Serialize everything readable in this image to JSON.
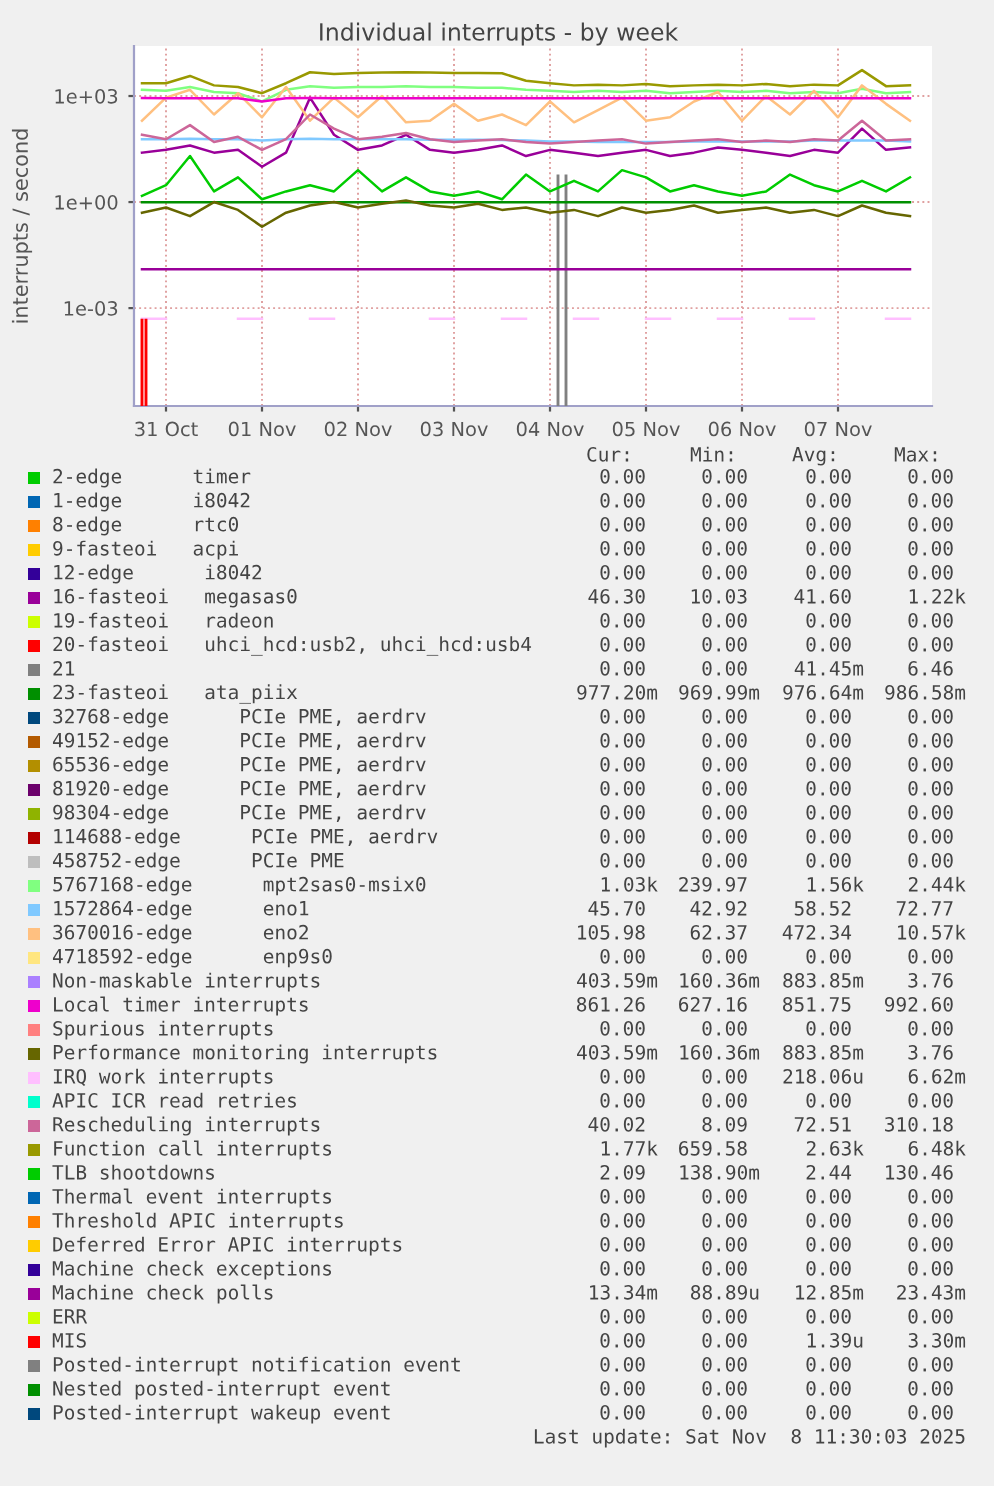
{
  "chart_data": {
    "type": "line",
    "title": "Individual interrupts - by week",
    "ylabel": "interrupts / second",
    "log": "y",
    "grid": true,
    "legend": "bottom",
    "marker": "none",
    "line_style": "solid",
    "ylim": [
      1.7e-06,
      26000
    ],
    "yticks": [
      {
        "value": 0.001,
        "label": "1e-03"
      },
      {
        "value": 1,
        "label": "1e+00"
      },
      {
        "value": 1000,
        "label": "1e+03"
      }
    ],
    "xlim": [
      "2025-10-31T04:00",
      "2025-11-08T11:30"
    ],
    "xticks": [
      {
        "value": "2025-10-31T12:00",
        "label": "31 Oct"
      },
      {
        "value": "2025-11-01T12:00",
        "label": "01 Nov"
      },
      {
        "value": "2025-11-02T12:00",
        "label": "02 Nov"
      },
      {
        "value": "2025-11-03T12:00",
        "label": "03 Nov"
      },
      {
        "value": "2025-11-04T12:00",
        "label": "04 Nov"
      },
      {
        "value": "2025-11-05T12:00",
        "label": "05 Nov"
      },
      {
        "value": "2025-11-06T12:00",
        "label": "06 Nov"
      },
      {
        "value": "2025-11-07T12:00",
        "label": "07 Nov"
      }
    ],
    "x": [
      "2025-10-31T06:00",
      "2025-10-31T12:00",
      "2025-10-31T18:00",
      "2025-11-01T00:00",
      "2025-11-01T06:00",
      "2025-11-01T12:00",
      "2025-11-01T18:00",
      "2025-11-02T00:00",
      "2025-11-02T06:00",
      "2025-11-02T12:00",
      "2025-11-02T18:00",
      "2025-11-03T00:00",
      "2025-11-03T06:00",
      "2025-11-03T12:00",
      "2025-11-03T18:00",
      "2025-11-04T00:00",
      "2025-11-04T06:00",
      "2025-11-04T12:00",
      "2025-11-04T18:00",
      "2025-11-05T00:00",
      "2025-11-05T06:00",
      "2025-11-05T12:00",
      "2025-11-05T18:00",
      "2025-11-06T00:00",
      "2025-11-06T06:00",
      "2025-11-06T12:00",
      "2025-11-06T18:00",
      "2025-11-07T00:00",
      "2025-11-07T06:00",
      "2025-11-07T12:00",
      "2025-11-07T18:00",
      "2025-11-08T00:00",
      "2025-11-08T06:00"
    ],
    "series": [
      {
        "name": "2-edge      timer",
        "color": "#00cc00",
        "values": [
          null,
          null,
          null,
          null,
          null,
          null,
          null,
          null,
          null,
          null,
          null,
          null,
          null,
          null,
          null,
          null,
          null,
          null,
          null,
          null,
          null,
          null,
          null,
          null,
          null,
          null,
          null,
          null,
          null,
          null,
          null,
          null,
          null
        ]
      },
      {
        "name": "1-edge      i8042",
        "color": "#0066b3",
        "values": [
          null,
          null,
          null,
          null,
          null,
          null,
          null,
          null,
          null,
          null,
          null,
          null,
          null,
          null,
          null,
          null,
          null,
          null,
          null,
          null,
          null,
          null,
          null,
          null,
          null,
          null,
          null,
          null,
          null,
          null,
          null,
          null,
          null
        ]
      },
      {
        "name": "8-edge      rtc0",
        "color": "#ff8000",
        "values": [
          null,
          null,
          null,
          null,
          null,
          null,
          null,
          null,
          null,
          null,
          null,
          null,
          null,
          null,
          null,
          null,
          null,
          null,
          null,
          null,
          null,
          null,
          null,
          null,
          null,
          null,
          null,
          null,
          null,
          null,
          null,
          null,
          null
        ]
      },
      {
        "name": "9-fasteoi   acpi",
        "color": "#ffcc00",
        "values": [
          null,
          null,
          null,
          null,
          null,
          null,
          null,
          null,
          null,
          null,
          null,
          null,
          null,
          null,
          null,
          null,
          null,
          null,
          null,
          null,
          null,
          null,
          null,
          null,
          null,
          null,
          null,
          null,
          null,
          null,
          null,
          null,
          null
        ]
      },
      {
        "name": "12-edge      i8042",
        "color": "#330099",
        "values": [
          null,
          null,
          null,
          null,
          null,
          null,
          null,
          null,
          null,
          null,
          null,
          null,
          null,
          null,
          null,
          null,
          null,
          null,
          null,
          null,
          null,
          null,
          null,
          null,
          null,
          null,
          null,
          null,
          null,
          null,
          null,
          null,
          null
        ]
      },
      {
        "name": "16-fasteoi   megasas0",
        "color": "#990099",
        "values": [
          25,
          30,
          40,
          25,
          30,
          10,
          25,
          900,
          80,
          30,
          40,
          80,
          30,
          25,
          30,
          40,
          20,
          30,
          25,
          20,
          25,
          30,
          20,
          25,
          35,
          30,
          25,
          20,
          30,
          25,
          120,
          30,
          35
        ]
      },
      {
        "name": "19-fasteoi   radeon",
        "color": "#ccff00",
        "values": [
          null,
          null,
          null,
          null,
          null,
          null,
          null,
          null,
          null,
          null,
          null,
          null,
          null,
          null,
          null,
          null,
          null,
          null,
          null,
          null,
          null,
          null,
          null,
          null,
          null,
          null,
          null,
          null,
          null,
          null,
          null,
          null,
          null
        ]
      },
      {
        "name": "20-fasteoi   uhci_hcd:usb2, uhci_hcd:usb4",
        "color": "#ff0000",
        "values": [
          null,
          null,
          null,
          null,
          null,
          null,
          null,
          null,
          null,
          null,
          null,
          null,
          null,
          null,
          null,
          null,
          null,
          null,
          null,
          null,
          null,
          null,
          null,
          null,
          null,
          null,
          null,
          null,
          null,
          null,
          null,
          null,
          null
        ]
      },
      {
        "name": "21",
        "color": "#808080",
        "type": "bar",
        "x": [
          "2025-11-04T14:00",
          "2025-11-04T16:00"
        ],
        "values": [
          6,
          6
        ]
      },
      {
        "name": "23-fasteoi   ata_piix",
        "color": "#008f00",
        "values": [
          0.98,
          0.98,
          0.98,
          0.98,
          0.98,
          0.98,
          0.98,
          0.98,
          0.98,
          0.98,
          0.98,
          0.98,
          0.98,
          0.98,
          0.98,
          0.98,
          0.98,
          0.98,
          0.98,
          0.98,
          0.98,
          0.98,
          0.98,
          0.98,
          0.98,
          0.98,
          0.98,
          0.98,
          0.98,
          0.98,
          0.98,
          0.98,
          0.98
        ]
      },
      {
        "name": "32768-edge      PCIe PME, aerdrv",
        "color": "#00487d",
        "values": [
          null,
          null,
          null,
          null,
          null,
          null,
          null,
          null,
          null,
          null,
          null,
          null,
          null,
          null,
          null,
          null,
          null,
          null,
          null,
          null,
          null,
          null,
          null,
          null,
          null,
          null,
          null,
          null,
          null,
          null,
          null,
          null,
          null
        ]
      },
      {
        "name": "49152-edge      PCIe PME, aerdrv",
        "color": "#b35a00",
        "values": [
          null,
          null,
          null,
          null,
          null,
          null,
          null,
          null,
          null,
          null,
          null,
          null,
          null,
          null,
          null,
          null,
          null,
          null,
          null,
          null,
          null,
          null,
          null,
          null,
          null,
          null,
          null,
          null,
          null,
          null,
          null,
          null,
          null
        ]
      },
      {
        "name": "65536-edge      PCIe PME, aerdrv",
        "color": "#b38f00",
        "values": [
          null,
          null,
          null,
          null,
          null,
          null,
          null,
          null,
          null,
          null,
          null,
          null,
          null,
          null,
          null,
          null,
          null,
          null,
          null,
          null,
          null,
          null,
          null,
          null,
          null,
          null,
          null,
          null,
          null,
          null,
          null,
          null,
          null
        ]
      },
      {
        "name": "81920-edge      PCIe PME, aerdrv",
        "color": "#6b006b",
        "values": [
          null,
          null,
          null,
          null,
          null,
          null,
          null,
          null,
          null,
          null,
          null,
          null,
          null,
          null,
          null,
          null,
          null,
          null,
          null,
          null,
          null,
          null,
          null,
          null,
          null,
          null,
          null,
          null,
          null,
          null,
          null,
          null,
          null
        ]
      },
      {
        "name": "98304-edge      PCIe PME, aerdrv",
        "color": "#8fb300",
        "values": [
          null,
          null,
          null,
          null,
          null,
          null,
          null,
          null,
          null,
          null,
          null,
          null,
          null,
          null,
          null,
          null,
          null,
          null,
          null,
          null,
          null,
          null,
          null,
          null,
          null,
          null,
          null,
          null,
          null,
          null,
          null,
          null,
          null
        ]
      },
      {
        "name": "114688-edge      PCIe PME, aerdrv",
        "color": "#b30000",
        "values": [
          null,
          null,
          null,
          null,
          null,
          null,
          null,
          null,
          null,
          null,
          null,
          null,
          null,
          null,
          null,
          null,
          null,
          null,
          null,
          null,
          null,
          null,
          null,
          null,
          null,
          null,
          null,
          null,
          null,
          null,
          null,
          null,
          null
        ]
      },
      {
        "name": "458752-edge      PCIe PME",
        "color": "#bebebe",
        "values": [
          null,
          null,
          null,
          null,
          null,
          null,
          null,
          null,
          null,
          null,
          null,
          null,
          null,
          null,
          null,
          null,
          null,
          null,
          null,
          null,
          null,
          null,
          null,
          null,
          null,
          null,
          null,
          null,
          null,
          null,
          null,
          null,
          null
        ]
      },
      {
        "name": "5767168-edge      mpt2sas0-msix0",
        "color": "#80ff80",
        "values": [
          1500,
          1400,
          1800,
          1300,
          1200,
          700,
          1500,
          1900,
          1700,
          1800,
          1800,
          1900,
          1800,
          1800,
          1700,
          1700,
          1500,
          1400,
          1300,
          1400,
          1300,
          1400,
          1200,
          1300,
          1400,
          1300,
          1400,
          1200,
          1300,
          1200,
          1600,
          1200,
          1300
        ]
      },
      {
        "name": "1572864-edge      eno1",
        "color": "#80c9ff",
        "values": [
          60,
          60,
          62,
          60,
          60,
          55,
          60,
          62,
          60,
          60,
          60,
          60,
          58,
          58,
          58,
          57,
          55,
          52,
          52,
          50,
          50,
          50,
          50,
          52,
          52,
          52,
          52,
          52,
          55,
          55,
          55,
          55,
          52
        ]
      },
      {
        "name": "3670016-edge      eno2",
        "color": "#ffc080",
        "values": [
          200,
          900,
          1500,
          300,
          1200,
          250,
          1800,
          200,
          900,
          250,
          1000,
          180,
          200,
          600,
          200,
          300,
          150,
          700,
          180,
          400,
          900,
          200,
          250,
          700,
          1300,
          200,
          1000,
          300,
          1400,
          250,
          2000,
          600,
          200
        ]
      },
      {
        "name": "4718592-edge      enp9s0",
        "color": "#ffe680",
        "values": [
          null,
          null,
          null,
          null,
          null,
          null,
          null,
          null,
          null,
          null,
          null,
          null,
          null,
          null,
          null,
          null,
          null,
          null,
          null,
          null,
          null,
          null,
          null,
          null,
          null,
          null,
          null,
          null,
          null,
          null,
          null,
          null,
          null
        ]
      },
      {
        "name": "Non-maskable interrupts",
        "color": "#aa80ff",
        "values": [
          null,
          null,
          null,
          null,
          null,
          null,
          null,
          null,
          null,
          null,
          null,
          null,
          null,
          null,
          null,
          null,
          null,
          null,
          null,
          null,
          null,
          null,
          null,
          null,
          null,
          null,
          null,
          null,
          null,
          null,
          null,
          null,
          null
        ]
      },
      {
        "name": "Local timer interrupts",
        "color": "#ee00cc",
        "values": [
          880,
          870,
          860,
          870,
          870,
          700,
          870,
          880,
          870,
          860,
          870,
          870,
          860,
          870,
          860,
          870,
          870,
          860,
          860,
          870,
          860,
          870,
          860,
          860,
          870,
          860,
          870,
          860,
          860,
          870,
          860,
          870,
          860
        ]
      },
      {
        "name": "Spurious interrupts",
        "color": "#ff8080",
        "values": [
          null,
          null,
          null,
          null,
          null,
          null,
          null,
          null,
          null,
          null,
          null,
          null,
          null,
          null,
          null,
          null,
          null,
          null,
          null,
          null,
          null,
          null,
          null,
          null,
          null,
          null,
          null,
          null,
          null,
          null,
          null,
          null,
          null
        ]
      },
      {
        "name": "Performance monitoring interrupts",
        "color": "#666600",
        "values": [
          0.5,
          0.7,
          0.4,
          1,
          0.6,
          0.2,
          0.5,
          0.8,
          1,
          0.7,
          0.9,
          1.1,
          0.8,
          0.7,
          0.9,
          0.6,
          0.7,
          0.5,
          0.6,
          0.4,
          0.7,
          0.5,
          0.6,
          0.8,
          0.5,
          0.6,
          0.7,
          0.5,
          0.6,
          0.4,
          0.8,
          0.5,
          0.4
        ]
      },
      {
        "name": "IRQ work interrupts",
        "color": "#ffbfff",
        "values": [
          0.0005,
          0.0005,
          null,
          null,
          0.0005,
          0.0005,
          null,
          0.0005,
          0.0005,
          null,
          null,
          null,
          0.0005,
          0.0005,
          null,
          0.0005,
          0.0005,
          null,
          0.0005,
          0.0005,
          null,
          0.0005,
          0.0005,
          null,
          0.0005,
          0.0005,
          null,
          0.0005,
          0.0005,
          null,
          null,
          0.0005,
          0.0005
        ]
      },
      {
        "name": "APIC ICR read retries",
        "color": "#00ffcc",
        "values": [
          null,
          null,
          null,
          null,
          null,
          null,
          null,
          null,
          null,
          null,
          null,
          null,
          null,
          null,
          null,
          null,
          null,
          null,
          null,
          null,
          null,
          null,
          null,
          null,
          null,
          null,
          null,
          null,
          null,
          null,
          null,
          null,
          null
        ]
      },
      {
        "name": "Rescheduling interrupts",
        "color": "#cc6699",
        "values": [
          80,
          60,
          150,
          50,
          70,
          30,
          60,
          300,
          120,
          60,
          70,
          90,
          60,
          50,
          55,
          60,
          50,
          45,
          50,
          55,
          60,
          45,
          50,
          55,
          60,
          50,
          55,
          50,
          60,
          55,
          200,
          55,
          60
        ]
      },
      {
        "name": "Function call interrupts",
        "color": "#999900",
        "values": [
          2300,
          2300,
          3700,
          2000,
          1800,
          1200,
          2300,
          4700,
          4200,
          4500,
          4600,
          4700,
          4600,
          4500,
          4500,
          4400,
          2700,
          2300,
          2000,
          2100,
          2000,
          2200,
          1900,
          2000,
          2100,
          2000,
          2200,
          1900,
          2100,
          2000,
          5400,
          1900,
          2000
        ]
      },
      {
        "name": "TLB shootdowns",
        "color": "#00cc00",
        "values": [
          1.5,
          3,
          20,
          2,
          5,
          1.2,
          2,
          3,
          2,
          8,
          2,
          5,
          2,
          1.5,
          2,
          1.2,
          6,
          2,
          4,
          2,
          8,
          5,
          2,
          3,
          2,
          1.5,
          2,
          6,
          3,
          2,
          4,
          2,
          5
        ]
      },
      {
        "name": "Thermal event interrupts",
        "color": "#0066b3",
        "values": [
          null,
          null,
          null,
          null,
          null,
          null,
          null,
          null,
          null,
          null,
          null,
          null,
          null,
          null,
          null,
          null,
          null,
          null,
          null,
          null,
          null,
          null,
          null,
          null,
          null,
          null,
          null,
          null,
          null,
          null,
          null,
          null,
          null
        ]
      },
      {
        "name": "Threshold APIC interrupts",
        "color": "#ff8000",
        "values": [
          null,
          null,
          null,
          null,
          null,
          null,
          null,
          null,
          null,
          null,
          null,
          null,
          null,
          null,
          null,
          null,
          null,
          null,
          null,
          null,
          null,
          null,
          null,
          null,
          null,
          null,
          null,
          null,
          null,
          null,
          null,
          null,
          null
        ]
      },
      {
        "name": "Deferred Error APIC interrupts",
        "color": "#ffcc00",
        "values": [
          null,
          null,
          null,
          null,
          null,
          null,
          null,
          null,
          null,
          null,
          null,
          null,
          null,
          null,
          null,
          null,
          null,
          null,
          null,
          null,
          null,
          null,
          null,
          null,
          null,
          null,
          null,
          null,
          null,
          null,
          null,
          null,
          null
        ]
      },
      {
        "name": "Machine check exceptions",
        "color": "#330099",
        "values": [
          null,
          null,
          null,
          null,
          null,
          null,
          null,
          null,
          null,
          null,
          null,
          null,
          null,
          null,
          null,
          null,
          null,
          null,
          null,
          null,
          null,
          null,
          null,
          null,
          null,
          null,
          null,
          null,
          null,
          null,
          null,
          null,
          null
        ]
      },
      {
        "name": "Machine check polls",
        "color": "#990099",
        "values": [
          0.0125,
          0.0125,
          0.0125,
          0.0125,
          0.0125,
          0.0125,
          0.0125,
          0.0125,
          0.0125,
          0.0125,
          0.0125,
          0.0125,
          0.0125,
          0.0125,
          0.0125,
          0.0125,
          0.0125,
          0.0125,
          0.0125,
          0.0125,
          0.0125,
          0.0125,
          0.0125,
          0.0125,
          0.0125,
          0.0125,
          0.0125,
          0.0125,
          0.0125,
          0.0125,
          0.0125,
          0.0125,
          0.0125
        ]
      },
      {
        "name": "ERR",
        "color": "#ccff00",
        "values": [
          null,
          null,
          null,
          null,
          null,
          null,
          null,
          null,
          null,
          null,
          null,
          null,
          null,
          null,
          null,
          null,
          null,
          null,
          null,
          null,
          null,
          null,
          null,
          null,
          null,
          null,
          null,
          null,
          null,
          null,
          null,
          null,
          null
        ]
      },
      {
        "name": "MIS",
        "color": "#ff0000",
        "type": "bar",
        "x": [
          "2025-10-31T06:00",
          "2025-10-31T07:00"
        ],
        "values": [
          0.0005,
          0.0005
        ]
      },
      {
        "name": "Posted-interrupt notification event",
        "color": "#808080",
        "values": [
          null,
          null,
          null,
          null,
          null,
          null,
          null,
          null,
          null,
          null,
          null,
          null,
          null,
          null,
          null,
          null,
          null,
          null,
          null,
          null,
          null,
          null,
          null,
          null,
          null,
          null,
          null,
          null,
          null,
          null,
          null,
          null,
          null
        ]
      },
      {
        "name": "Nested posted-interrupt event",
        "color": "#008f00",
        "values": [
          null,
          null,
          null,
          null,
          null,
          null,
          null,
          null,
          null,
          null,
          null,
          null,
          null,
          null,
          null,
          null,
          null,
          null,
          null,
          null,
          null,
          null,
          null,
          null,
          null,
          null,
          null,
          null,
          null,
          null,
          null,
          null,
          null
        ]
      },
      {
        "name": "Posted-interrupt wakeup event",
        "color": "#00487d",
        "values": [
          null,
          null,
          null,
          null,
          null,
          null,
          null,
          null,
          null,
          null,
          null,
          null,
          null,
          null,
          null,
          null,
          null,
          null,
          null,
          null,
          null,
          null,
          null,
          null,
          null,
          null,
          null,
          null,
          null,
          null,
          null,
          null,
          null
        ]
      }
    ],
    "annotations": [
      "Cur:",
      "Min:",
      "Avg:",
      "Max:",
      "0.00",
      "0.00",
      "0.00",
      "0.00",
      "0.00",
      "0.00",
      "0.00",
      "0.00",
      "0.00",
      "0.00",
      "0.00",
      "0.00",
      "0.00",
      "0.00",
      "0.00",
      "0.00",
      "0.00",
      "0.00",
      "0.00",
      "0.00",
      "46.30",
      "10.03",
      "41.60",
      "1.22k",
      "0.00",
      "0.00",
      "0.00",
      "0.00",
      "0.00",
      "0.00",
      "0.00",
      "0.00",
      "0.00",
      "0.00",
      "41.45m",
      "6.46",
      "977.20m",
      "969.99m",
      "976.64m",
      "986.58m",
      "0.00",
      "0.00",
      "0.00",
      "0.00",
      "0.00",
      "0.00",
      "0.00",
      "0.00",
      "0.00",
      "0.00",
      "0.00",
      "0.00",
      "0.00",
      "0.00",
      "0.00",
      "0.00",
      "0.00",
      "0.00",
      "0.00",
      "0.00",
      "0.00",
      "0.00",
      "0.00",
      "0.00",
      "0.00",
      "0.00",
      "0.00",
      "0.00",
      "1.03k",
      "239.97",
      "1.56k",
      "2.44k",
      "45.70",
      "42.92",
      "58.52",
      "72.77",
      "105.98",
      "62.37",
      "472.34",
      "10.57k",
      "0.00",
      "0.00",
      "0.00",
      "0.00",
      "403.59m",
      "160.36m",
      "883.85m",
      "3.76",
      "861.26",
      "627.16",
      "851.75",
      "992.60",
      "0.00",
      "0.00",
      "0.00",
      "0.00",
      "403.59m",
      "160.36m",
      "883.85m",
      "3.76",
      "0.00",
      "0.00",
      "218.06u",
      "6.62m",
      "0.00",
      "0.00",
      "0.00",
      "0.00",
      "40.02",
      "8.09",
      "72.51",
      "310.18",
      "1.77k",
      "659.58",
      "2.63k",
      "6.48k",
      "2.09",
      "138.90m",
      "2.44",
      "130.46",
      "0.00",
      "0.00",
      "0.00",
      "0.00",
      "0.00",
      "0.00",
      "0.00",
      "0.00",
      "0.00",
      "0.00",
      "0.00",
      "0.00",
      "0.00",
      "0.00",
      "0.00",
      "0.00",
      "13.34m",
      "88.89u",
      "12.85m",
      "23.43m",
      "0.00",
      "0.00",
      "0.00",
      "0.00",
      "0.00",
      "0.00",
      "1.39u",
      "3.30m",
      "0.00",
      "0.00",
      "0.00",
      "0.00",
      "0.00",
      "0.00",
      "0.00",
      "0.00",
      "0.00",
      "0.00",
      "0.00",
      "0.00",
      "Last update: Sat Nov  8 11:30:03 2025"
    ]
  }
}
